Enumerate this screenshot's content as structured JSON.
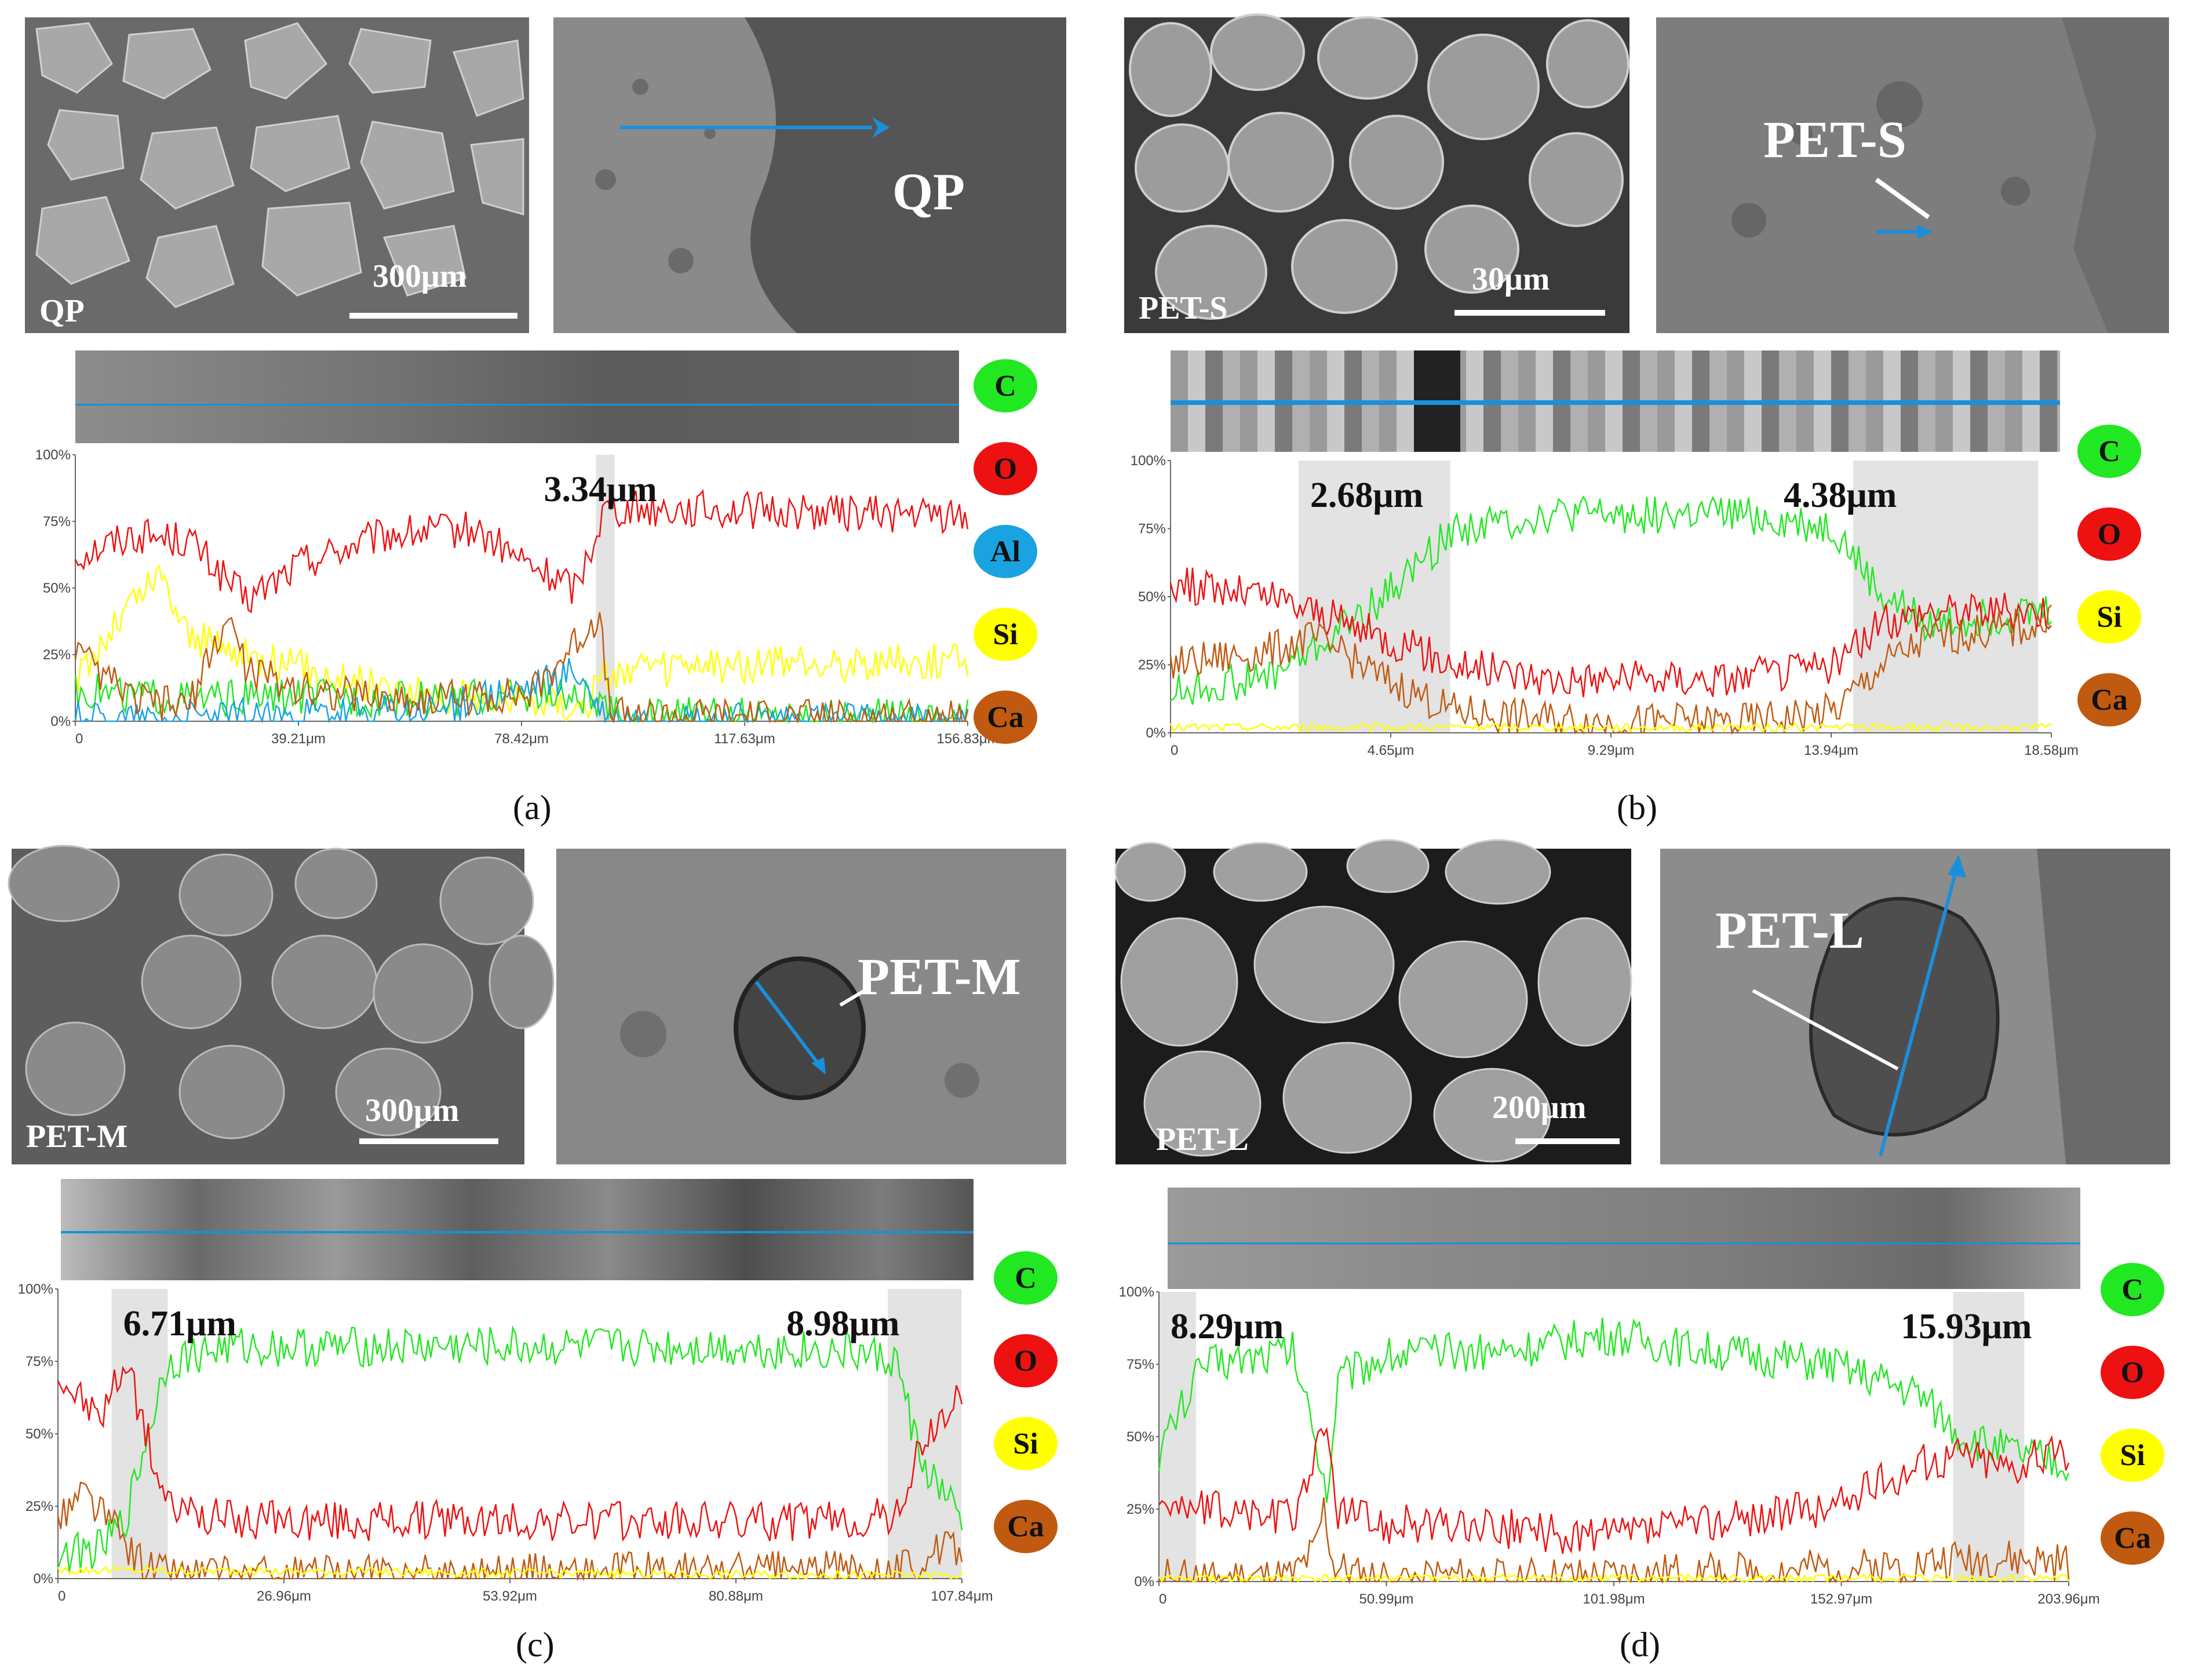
{
  "element_colors": {
    "C": "#22e822",
    "O": "#ee1111",
    "Al": "#1aa3e0",
    "Si": "#ffff00",
    "Ca": "#c05a10"
  },
  "panels": {
    "a": {
      "caption": "(a)",
      "particle_label": "QP",
      "scale_text": "300μm",
      "section_label": "QP",
      "legend": [
        "C",
        "O",
        "Al",
        "Si",
        "Ca"
      ],
      "annotations": [
        "3.34μm"
      ],
      "y_ticks": [
        "100%",
        "75%",
        "50%",
        "25%",
        "0%"
      ],
      "x_ticks": [
        "0",
        "39.21μm",
        "78.42μm",
        "117.63μm",
        "156.83μm"
      ]
    },
    "b": {
      "caption": "(b)",
      "particle_label": "PET-S",
      "scale_text": "30μm",
      "section_label": "PET-S",
      "legend": [
        "C",
        "O",
        "Si",
        "Ca"
      ],
      "annotations": [
        "2.68μm",
        "4.38μm"
      ],
      "y_ticks": [
        "100%",
        "75%",
        "50%",
        "25%",
        "0%"
      ],
      "x_ticks": [
        "0",
        "4.65μm",
        "9.29μm",
        "13.94μm",
        "18.58μm"
      ]
    },
    "c": {
      "caption": "(c)",
      "particle_label": "PET-M",
      "scale_text": "300μm",
      "section_label": "PET-M",
      "legend": [
        "C",
        "O",
        "Si",
        "Ca"
      ],
      "annotations": [
        "6.71μm",
        "8.98μm"
      ],
      "y_ticks": [
        "100%",
        "75%",
        "50%",
        "25%",
        "0%"
      ],
      "x_ticks": [
        "0",
        "26.96μm",
        "53.92μm",
        "80.88μm",
        "107.84μm"
      ]
    },
    "d": {
      "caption": "(d)",
      "particle_label": "PET-L",
      "scale_text": "200μm",
      "section_label": "PET-L",
      "legend": [
        "C",
        "O",
        "Si",
        "Ca"
      ],
      "annotations": [
        "8.29μm",
        "15.93μm"
      ],
      "y_ticks": [
        "100%",
        "75%",
        "50%",
        "25%",
        "0%"
      ],
      "x_ticks": [
        "0",
        "50.99μm",
        "101.98μm",
        "152.97μm",
        "203.96μm"
      ]
    }
  },
  "chart_data": [
    {
      "type": "line",
      "panel": "a",
      "x_unit": "μm",
      "xlim": [
        0,
        156.83
      ],
      "ylim": [
        0,
        100
      ],
      "interfaces": [
        {
          "label": "3.34μm",
          "range": [
            91.5,
            94.8
          ]
        }
      ],
      "series": [
        {
          "name": "O",
          "x": [
            0,
            10,
            20,
            30,
            40,
            55,
            70,
            80,
            88,
            93,
            100,
            120,
            140,
            156.8
          ],
          "values": [
            62,
            70,
            68,
            45,
            60,
            70,
            72,
            58,
            50,
            80,
            80,
            79,
            78,
            77
          ]
        },
        {
          "name": "Si",
          "x": [
            0,
            10,
            15,
            20,
            30,
            40,
            60,
            80,
            90,
            93,
            100,
            120,
            140,
            156.8
          ],
          "values": [
            15,
            45,
            55,
            32,
            25,
            20,
            10,
            8,
            6,
            18,
            19,
            21,
            22,
            23
          ]
        },
        {
          "name": "C",
          "x": [
            0,
            10,
            20,
            40,
            60,
            80,
            90,
            93,
            100,
            156.8
          ],
          "values": [
            12,
            10,
            8,
            9,
            8,
            10,
            8,
            3,
            2,
            2
          ]
        },
        {
          "name": "Al",
          "x": [
            0,
            20,
            40,
            60,
            80,
            88,
            92,
            93,
            156.8
          ],
          "values": [
            1,
            1,
            2,
            3,
            12,
            18,
            5,
            0,
            0
          ]
        },
        {
          "name": "Ca",
          "x": [
            0,
            10,
            20,
            27,
            30,
            40,
            60,
            80,
            88,
            92,
            94,
            156.8
          ],
          "values": [
            25,
            8,
            6,
            40,
            20,
            12,
            8,
            10,
            30,
            40,
            2,
            1
          ]
        }
      ]
    },
    {
      "type": "line",
      "panel": "b",
      "x_unit": "μm",
      "xlim": [
        0,
        18.58
      ],
      "ylim": [
        0,
        100
      ],
      "interfaces": [
        {
          "label": "2.68μm",
          "range": [
            2.7,
            5.9
          ]
        },
        {
          "label": "4.38μm",
          "range": [
            14.4,
            18.3
          ]
        }
      ],
      "series": [
        {
          "name": "C",
          "x": [
            0,
            2,
            3,
            4.5,
            6,
            8,
            10,
            12,
            14,
            15,
            16,
            18.58
          ],
          "values": [
            15,
            20,
            30,
            50,
            75,
            80,
            80,
            80,
            75,
            50,
            40,
            45
          ]
        },
        {
          "name": "O",
          "x": [
            0,
            2,
            3,
            4.5,
            6,
            8,
            10,
            12,
            14,
            15,
            16,
            18.58
          ],
          "values": [
            55,
            50,
            45,
            35,
            25,
            20,
            20,
            20,
            25,
            40,
            45,
            45
          ]
        },
        {
          "name": "Ca",
          "x": [
            0,
            2,
            3,
            4.5,
            6,
            8,
            10,
            12,
            14,
            15,
            16,
            18.58
          ],
          "values": [
            25,
            30,
            35,
            20,
            8,
            5,
            4,
            4,
            8,
            25,
            35,
            40
          ]
        },
        {
          "name": "Si",
          "x": [
            0,
            18.58
          ],
          "values": [
            2,
            2
          ]
        }
      ]
    },
    {
      "type": "line",
      "panel": "c",
      "x_unit": "μm",
      "xlim": [
        0,
        107.84
      ],
      "ylim": [
        0,
        100
      ],
      "interfaces": [
        {
          "label": "6.71μm",
          "range": [
            6.4,
            13.1
          ]
        },
        {
          "label": "8.98μm",
          "range": [
            99.0,
            107.8
          ]
        }
      ],
      "series": [
        {
          "name": "C",
          "x": [
            0,
            5,
            8,
            13,
            20,
            50,
            80,
            95,
            100,
            103,
            107.8
          ],
          "values": [
            8,
            10,
            20,
            75,
            80,
            80,
            80,
            78,
            75,
            40,
            20
          ]
        },
        {
          "name": "O",
          "x": [
            0,
            5,
            8,
            13,
            20,
            50,
            80,
            95,
            100,
            103,
            107.8
          ],
          "values": [
            70,
            55,
            75,
            25,
            20,
            20,
            20,
            20,
            22,
            45,
            65
          ]
        },
        {
          "name": "Ca",
          "x": [
            0,
            3,
            6,
            10,
            13,
            20,
            100,
            107.8
          ],
          "values": [
            20,
            30,
            20,
            5,
            2,
            1,
            3,
            12
          ]
        },
        {
          "name": "Si",
          "x": [
            0,
            107.8
          ],
          "values": [
            3,
            1
          ]
        }
      ]
    },
    {
      "type": "line",
      "panel": "d",
      "x_unit": "μm",
      "xlim": [
        0,
        203.96
      ],
      "ylim": [
        0,
        100
      ],
      "interfaces": [
        {
          "label": "8.29μm",
          "range": [
            0,
            8.3
          ]
        },
        {
          "label": "15.93μm",
          "range": [
            178,
            194
          ]
        }
      ],
      "series": [
        {
          "name": "C",
          "x": [
            0,
            5,
            10,
            30,
            35,
            38,
            40,
            50,
            80,
            100,
            120,
            150,
            170,
            180,
            190,
            203.9
          ],
          "values": [
            45,
            60,
            75,
            80,
            50,
            30,
            70,
            78,
            80,
            85,
            80,
            75,
            65,
            50,
            45,
            40
          ]
        },
        {
          "name": "O",
          "x": [
            0,
            5,
            10,
            30,
            35,
            38,
            40,
            50,
            80,
            100,
            120,
            150,
            170,
            180,
            190,
            203.9
          ],
          "values": [
            30,
            25,
            25,
            22,
            45,
            50,
            25,
            20,
            18,
            15,
            20,
            25,
            40,
            45,
            40,
            45
          ]
        },
        {
          "name": "Ca",
          "x": [
            0,
            30,
            35,
            37,
            39,
            45,
            100,
            120,
            150,
            170,
            180,
            203.9
          ],
          "values": [
            1,
            1,
            10,
            25,
            5,
            1,
            1,
            3,
            4,
            6,
            8,
            6
          ]
        },
        {
          "name": "Si",
          "x": [
            0,
            203.9
          ],
          "values": [
            1,
            1
          ]
        }
      ]
    }
  ]
}
